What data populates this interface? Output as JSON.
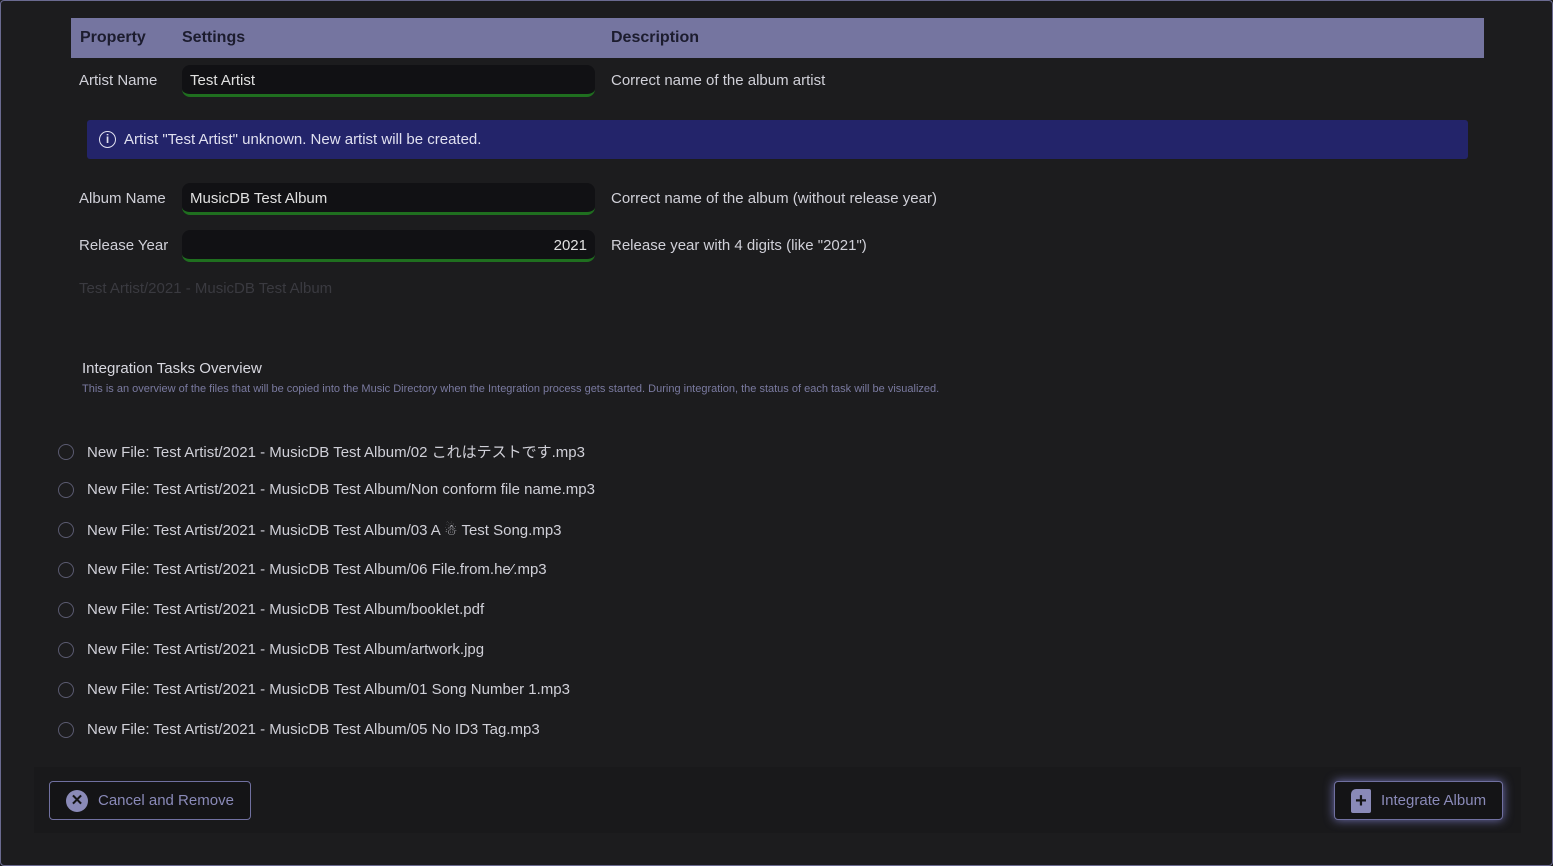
{
  "table": {
    "headers": [
      "Property",
      "Settings",
      "Description"
    ]
  },
  "fields": [
    {
      "label": "Artist Name",
      "value": "Test Artist",
      "description": "Correct name of the album artist"
    },
    {
      "label": "Album Name",
      "value": "MusicDB Test Album",
      "description": "Correct name of the album (without release year)"
    },
    {
      "label": "Release Year",
      "value": "2021",
      "description": "Release year with 4 digits (like \"2021\")"
    }
  ],
  "info_message": "Artist \"Test Artist\" unknown. New artist will be created.",
  "target_path": "Test Artist/2021 - MusicDB Test Album",
  "overview": {
    "title": "Integration Tasks Overview",
    "description": "This is an overview of the files that will be copied into the Music Directory when the Integration process gets started. During integration, the status of each task will be visualized."
  },
  "tasks": [
    "New File: Test Artist/2021 - MusicDB Test Album/02 これはテストです.mp3",
    "New File: Test Artist/2021 - MusicDB Test Album/Non conform file name.mp3",
    "New File: Test Artist/2021 - MusicDB Test Album/03 A ☃ Test Song.mp3",
    "New File: Test Artist/2021 - MusicDB Test Album/06 File.from.he⁄.mp3",
    "New File: Test Artist/2021 - MusicDB Test Album/booklet.pdf",
    "New File: Test Artist/2021 - MusicDB Test Album/artwork.jpg",
    "New File: Test Artist/2021 - MusicDB Test Album/01 Song Number 1.mp3",
    "New File: Test Artist/2021 - MusicDB Test Album/05 No ID3 Tag.mp3"
  ],
  "buttons": {
    "cancel": "Cancel and Remove",
    "integrate": "Integrate Album"
  }
}
